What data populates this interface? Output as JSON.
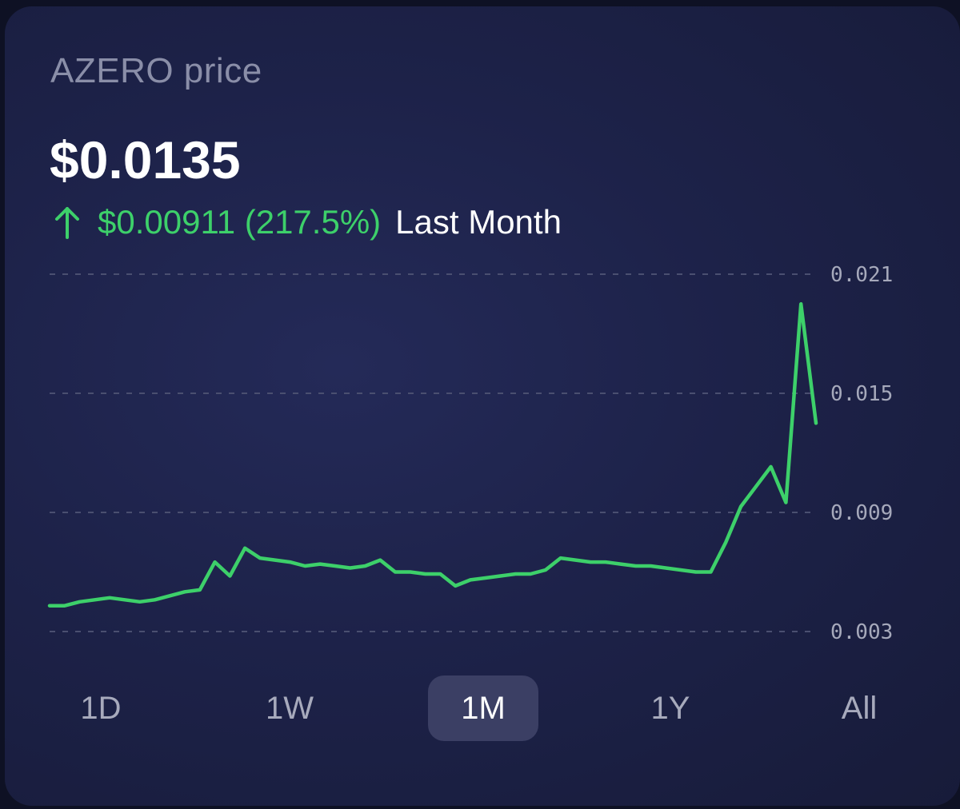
{
  "header": {
    "title": "AZERO price",
    "price": "$0.0135",
    "change_value": "$0.00911 (217.5%)",
    "change_period": "Last Month",
    "change_direction": "up"
  },
  "colors": {
    "positive": "#3dd06a",
    "line": "#3dd06a",
    "grid": "#4a4f70"
  },
  "ranges": {
    "items": [
      "1D",
      "1W",
      "1M",
      "1Y",
      "All"
    ],
    "active": "1M"
  },
  "chart_data": {
    "type": "line",
    "title": "",
    "xlabel": "",
    "ylabel": "",
    "ylim": [
      0.003,
      0.021
    ],
    "yticks": [
      0.021,
      0.015,
      0.009,
      0.003
    ],
    "ytick_labels": [
      "0.021",
      "0.015",
      "0.009",
      "0.003"
    ],
    "grid": "horizontal dashed",
    "y_axis_position": "right",
    "series": [
      {
        "values": [
          0.0043,
          0.0043,
          0.0045,
          0.0046,
          0.0047,
          0.0046,
          0.0045,
          0.0046,
          0.0048,
          0.005,
          0.0051,
          0.0065,
          0.0058,
          0.0072,
          0.0067,
          0.0066,
          0.0065,
          0.0063,
          0.0064,
          0.0063,
          0.0062,
          0.0063,
          0.0066,
          0.006,
          0.006,
          0.0059,
          0.0059,
          0.0053,
          0.0056,
          0.0057,
          0.0058,
          0.0059,
          0.0059,
          0.0061,
          0.0067,
          0.0066,
          0.0065,
          0.0065,
          0.0064,
          0.0063,
          0.0063,
          0.0062,
          0.0061,
          0.006,
          0.006,
          0.0075,
          0.0093,
          0.0103,
          0.0113,
          0.0095,
          0.0195,
          0.0135
        ]
      }
    ]
  }
}
